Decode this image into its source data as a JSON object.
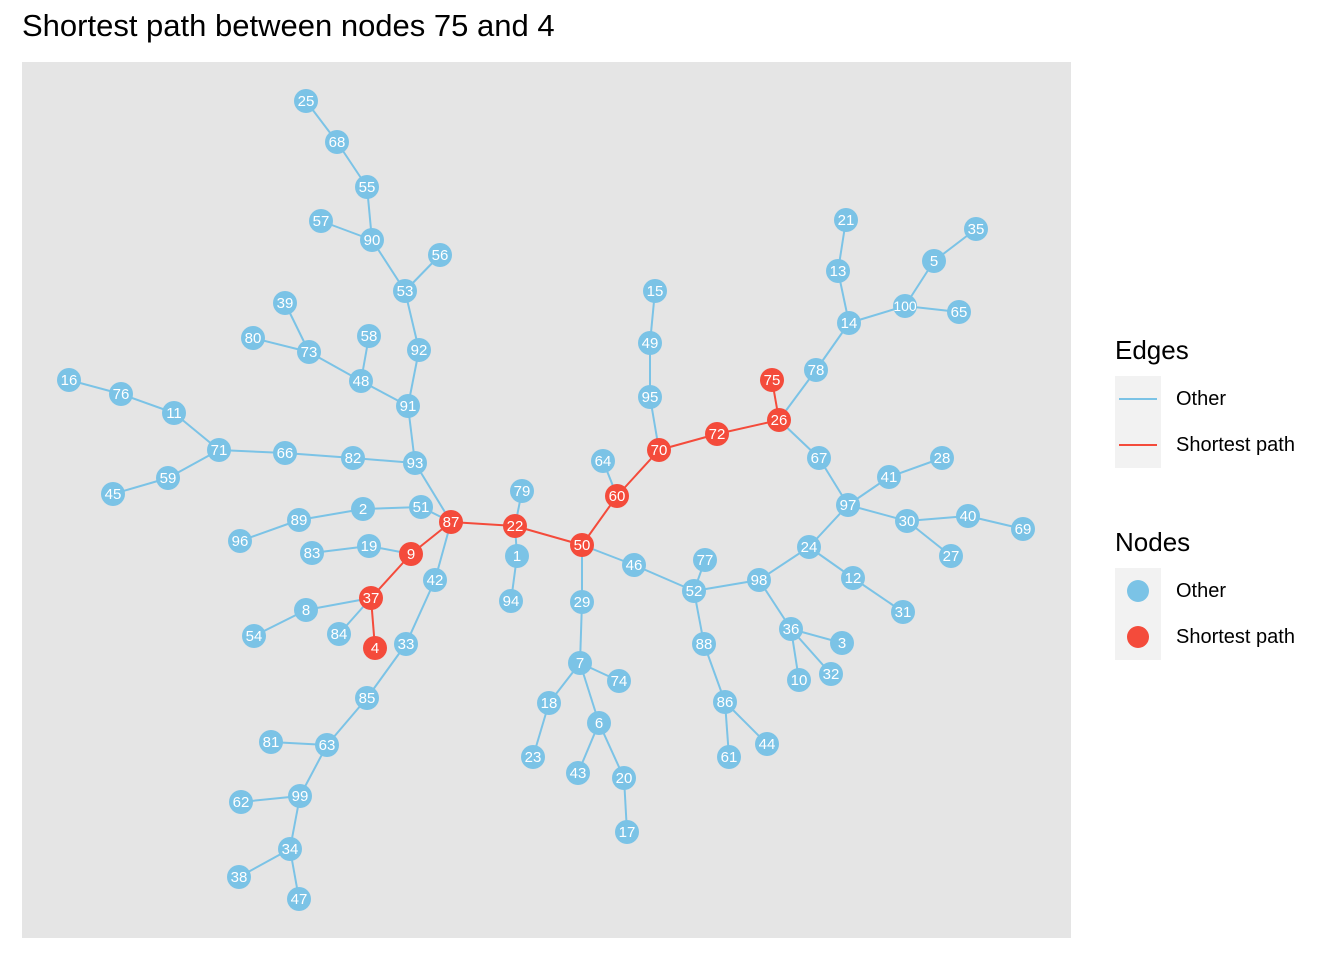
{
  "title": "Shortest path between nodes 75 and 4",
  "colors": {
    "other": "#7BC3E6",
    "path": "#F44B3B",
    "panel": "#E5E5E5",
    "legend_key_bg": "#F2F2F2"
  },
  "legend": {
    "edges": {
      "title": "Edges",
      "items": [
        "Other",
        "Shortest path"
      ]
    },
    "nodes": {
      "title": "Nodes",
      "items": [
        "Other",
        "Shortest path"
      ]
    }
  },
  "graph": {
    "source": "75",
    "target": "4",
    "shortest_path": [
      "75",
      "26",
      "72",
      "70",
      "60",
      "50",
      "22",
      "87",
      "9",
      "37",
      "4"
    ],
    "nodes": [
      "1",
      "2",
      "3",
      "4",
      "5",
      "6",
      "7",
      "8",
      "9",
      "10",
      "11",
      "12",
      "13",
      "14",
      "15",
      "16",
      "17",
      "18",
      "19",
      "20",
      "21",
      "22",
      "23",
      "24",
      "25",
      "26",
      "27",
      "28",
      "29",
      "30",
      "31",
      "32",
      "33",
      "34",
      "35",
      "36",
      "37",
      "38",
      "39",
      "40",
      "41",
      "42",
      "43",
      "44",
      "45",
      "46",
      "47",
      "48",
      "49",
      "50",
      "51",
      "52",
      "53",
      "54",
      "55",
      "56",
      "57",
      "58",
      "59",
      "60",
      "61",
      "62",
      "63",
      "64",
      "65",
      "66",
      "67",
      "68",
      "69",
      "70",
      "71",
      "72",
      "73",
      "74",
      "75",
      "76",
      "77",
      "78",
      "79",
      "80",
      "81",
      "82",
      "83",
      "84",
      "85",
      "86",
      "87",
      "88",
      "89",
      "90",
      "91",
      "92",
      "93",
      "94",
      "95",
      "96",
      "97",
      "98",
      "99",
      "100"
    ],
    "edges": [
      [
        "25",
        "68"
      ],
      [
        "68",
        "55"
      ],
      [
        "55",
        "90"
      ],
      [
        "57",
        "90"
      ],
      [
        "90",
        "53"
      ],
      [
        "56",
        "53"
      ],
      [
        "53",
        "92"
      ],
      [
        "92",
        "91"
      ],
      [
        "39",
        "73"
      ],
      [
        "80",
        "73"
      ],
      [
        "73",
        "48"
      ],
      [
        "58",
        "48"
      ],
      [
        "48",
        "91"
      ],
      [
        "91",
        "93"
      ],
      [
        "16",
        "76"
      ],
      [
        "76",
        "11"
      ],
      [
        "11",
        "71"
      ],
      [
        "71",
        "59"
      ],
      [
        "59",
        "45"
      ],
      [
        "71",
        "66"
      ],
      [
        "66",
        "82"
      ],
      [
        "82",
        "93"
      ],
      [
        "93",
        "87"
      ],
      [
        "96",
        "89"
      ],
      [
        "89",
        "2"
      ],
      [
        "2",
        "51"
      ],
      [
        "51",
        "87"
      ],
      [
        "83",
        "19"
      ],
      [
        "19",
        "9"
      ],
      [
        "87",
        "9"
      ],
      [
        "9",
        "37"
      ],
      [
        "37",
        "4"
      ],
      [
        "37",
        "8"
      ],
      [
        "8",
        "54"
      ],
      [
        "37",
        "84"
      ],
      [
        "87",
        "42"
      ],
      [
        "42",
        "33"
      ],
      [
        "33",
        "85"
      ],
      [
        "85",
        "63"
      ],
      [
        "81",
        "63"
      ],
      [
        "63",
        "99"
      ],
      [
        "62",
        "99"
      ],
      [
        "99",
        "34"
      ],
      [
        "34",
        "38"
      ],
      [
        "34",
        "47"
      ],
      [
        "87",
        "22"
      ],
      [
        "22",
        "79"
      ],
      [
        "22",
        "1"
      ],
      [
        "1",
        "94"
      ],
      [
        "22",
        "50"
      ],
      [
        "50",
        "29"
      ],
      [
        "29",
        "7"
      ],
      [
        "7",
        "74"
      ],
      [
        "7",
        "18"
      ],
      [
        "18",
        "23"
      ],
      [
        "7",
        "6"
      ],
      [
        "6",
        "43"
      ],
      [
        "6",
        "20"
      ],
      [
        "20",
        "17"
      ],
      [
        "50",
        "46"
      ],
      [
        "46",
        "52"
      ],
      [
        "77",
        "52"
      ],
      [
        "52",
        "88"
      ],
      [
        "88",
        "86"
      ],
      [
        "86",
        "61"
      ],
      [
        "86",
        "44"
      ],
      [
        "52",
        "98"
      ],
      [
        "98",
        "36"
      ],
      [
        "36",
        "3"
      ],
      [
        "36",
        "10"
      ],
      [
        "36",
        "32"
      ],
      [
        "98",
        "24"
      ],
      [
        "24",
        "12"
      ],
      [
        "12",
        "31"
      ],
      [
        "24",
        "97"
      ],
      [
        "97",
        "41"
      ],
      [
        "41",
        "28"
      ],
      [
        "97",
        "30"
      ],
      [
        "30",
        "40"
      ],
      [
        "40",
        "69"
      ],
      [
        "30",
        "27"
      ],
      [
        "97",
        "67"
      ],
      [
        "50",
        "60"
      ],
      [
        "60",
        "64"
      ],
      [
        "60",
        "70"
      ],
      [
        "70",
        "95"
      ],
      [
        "95",
        "49"
      ],
      [
        "49",
        "15"
      ],
      [
        "70",
        "72"
      ],
      [
        "72",
        "26"
      ],
      [
        "26",
        "75"
      ],
      [
        "26",
        "78"
      ],
      [
        "78",
        "14"
      ],
      [
        "14",
        "13"
      ],
      [
        "13",
        "21"
      ],
      [
        "14",
        "100"
      ],
      [
        "100",
        "5"
      ],
      [
        "5",
        "35"
      ],
      [
        "100",
        "65"
      ],
      [
        "26",
        "67"
      ]
    ]
  }
}
